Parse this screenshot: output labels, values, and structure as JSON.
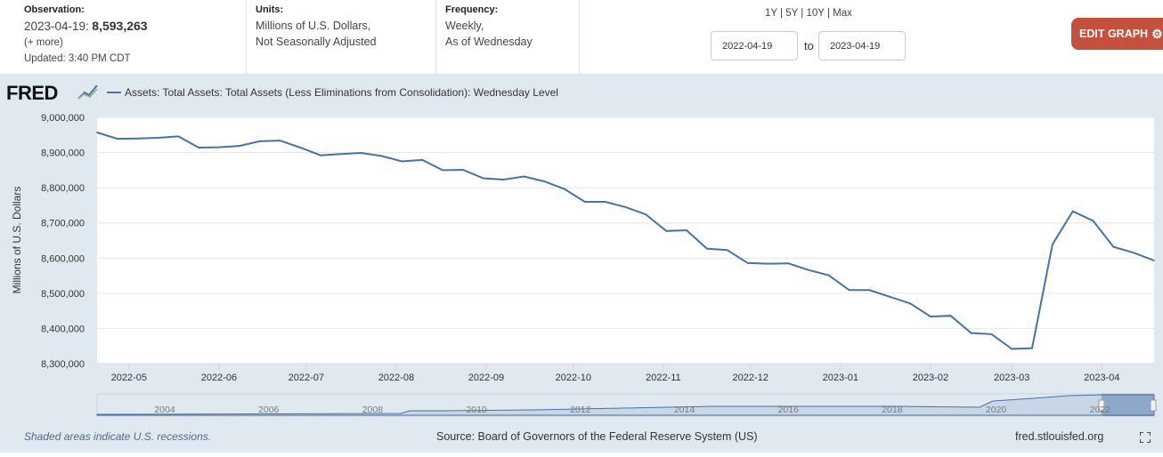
{
  "header": {
    "observation": {
      "label": "Observation:",
      "date": "2023-04-19:",
      "value": "8,593,263",
      "more": "(+ more)",
      "updated": "Updated: 3:40 PM CDT"
    },
    "units": {
      "label": "Units:",
      "line1": "Millions of U.S. Dollars,",
      "line2": "Not Seasonally Adjusted"
    },
    "frequency": {
      "label": "Frequency:",
      "line1": "Weekly,",
      "line2": "As of Wednesday"
    },
    "range_links": [
      "1Y",
      "5Y",
      "10Y",
      "Max"
    ],
    "date_start": "2022-04-19",
    "date_to": "to",
    "date_end": "2023-04-19",
    "edit_label": "EDIT GRAPH"
  },
  "logo_text": "FRED",
  "footer": {
    "recession_note": "Shaded areas indicate U.S. recessions.",
    "source": "Source: Board of Governors of the Federal Reserve System (US)",
    "site": "fred.stlouisfed.org"
  },
  "colors": {
    "line": "#4572a7",
    "edit_button": "#c5503e",
    "background": "#e1e9f0"
  },
  "chart_data": {
    "type": "line",
    "legend": "Assets: Total Assets: Total Assets (Less Eliminations from Consolidation): Wednesday Level",
    "ylabel": "Millions of U.S. Dollars",
    "ylim": [
      8300000,
      9000000
    ],
    "yticks": [
      9000000,
      8900000,
      8800000,
      8700000,
      8600000,
      8500000,
      8400000,
      8300000
    ],
    "ytick_labels": [
      "9,000,000",
      "8,900,000",
      "8,800,000",
      "8,700,000",
      "8,600,000",
      "8,500,000",
      "8,400,000",
      "8,300,000"
    ],
    "xlim": [
      "2022-04-20",
      "2023-04-19"
    ],
    "xticks": [
      "2022-05-01",
      "2022-06-01",
      "2022-07-01",
      "2022-08-01",
      "2022-09-01",
      "2022-10-01",
      "2022-11-01",
      "2022-12-01",
      "2023-01-01",
      "2023-02-01",
      "2023-03-01",
      "2023-04-01"
    ],
    "xtick_labels": [
      "2022-05",
      "2022-06",
      "2022-07",
      "2022-08",
      "2022-09",
      "2022-10",
      "2022-11",
      "2022-12",
      "2023-01",
      "2023-02",
      "2023-03",
      "2023-04"
    ],
    "grid": true,
    "series": [
      {
        "name": "Assets: Total Assets: Total Assets (Less Eliminations from Consolidation): Wednesday Level",
        "x": [
          "2022-04-20",
          "2022-04-27",
          "2022-05-04",
          "2022-05-11",
          "2022-05-18",
          "2022-05-25",
          "2022-06-01",
          "2022-06-08",
          "2022-06-15",
          "2022-06-22",
          "2022-06-29",
          "2022-07-06",
          "2022-07-13",
          "2022-07-20",
          "2022-07-27",
          "2022-08-03",
          "2022-08-10",
          "2022-08-17",
          "2022-08-24",
          "2022-08-31",
          "2022-09-07",
          "2022-09-14",
          "2022-09-21",
          "2022-09-28",
          "2022-10-05",
          "2022-10-12",
          "2022-10-19",
          "2022-10-26",
          "2022-11-02",
          "2022-11-09",
          "2022-11-16",
          "2022-11-23",
          "2022-11-30",
          "2022-12-07",
          "2022-12-14",
          "2022-12-21",
          "2022-12-28",
          "2023-01-04",
          "2023-01-11",
          "2023-01-18",
          "2023-01-25",
          "2023-02-01",
          "2023-02-08",
          "2023-02-15",
          "2023-02-22",
          "2023-03-01",
          "2023-03-08",
          "2023-03-15",
          "2023-03-22",
          "2023-03-29",
          "2023-04-05",
          "2023-04-12",
          "2023-04-19"
        ],
        "y": [
          8957000,
          8939000,
          8940000,
          8942000,
          8946000,
          8914000,
          8915000,
          8919000,
          8932000,
          8934000,
          8914000,
          8892000,
          8896000,
          8899000,
          8890000,
          8875000,
          8879000,
          8850000,
          8851000,
          8827000,
          8823000,
          8832000,
          8818000,
          8796000,
          8760000,
          8760000,
          8745000,
          8724000,
          8677000,
          8679000,
          8627000,
          8623000,
          8586000,
          8584000,
          8585000,
          8566000,
          8551000,
          8509000,
          8509000,
          8490000,
          8471000,
          8434000,
          8436000,
          8387000,
          8384000,
          8342000,
          8344000,
          8639000,
          8733000,
          8706000,
          8632000,
          8615000,
          8593263
        ]
      }
    ],
    "navigator": {
      "tick_labels": [
        "2004",
        "2006",
        "2008",
        "2010",
        "2012",
        "2014",
        "2016",
        "2018",
        "2020",
        "2022"
      ]
    }
  }
}
